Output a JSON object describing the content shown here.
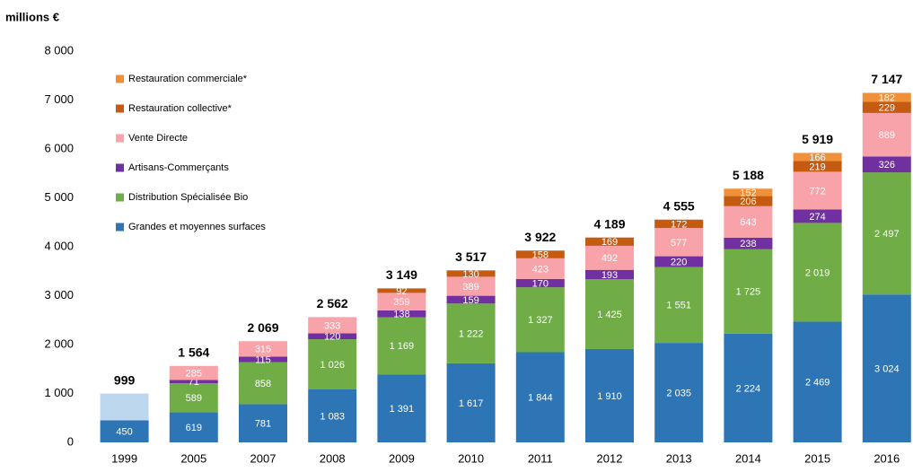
{
  "chart_data": {
    "type": "stacked_bar",
    "y_label": "millions €",
    "categories": [
      "1999",
      "2005",
      "2007",
      "2008",
      "2009",
      "2010",
      "2011",
      "2012",
      "2013",
      "2014",
      "2015",
      "2016"
    ],
    "ylim": [
      0,
      8000
    ],
    "yticks": [
      0,
      {
        "value": 1000,
        "label": "1 000"
      },
      {
        "value": 2000,
        "label": "2 000"
      },
      {
        "value": 3000,
        "label": "3 000"
      },
      {
        "value": 4000,
        "label": "4 000"
      },
      {
        "value": 5000,
        "label": "5 000"
      },
      {
        "value": 6000,
        "label": "6 000"
      },
      {
        "value": 7000,
        "label": "7 000"
      },
      {
        "value": 8000,
        "label": "8 000"
      }
    ],
    "grid": false,
    "series": [
      {
        "name": "Grandes et moyennes surfaces",
        "color": "#2e75b6",
        "values": [
          450,
          619,
          781,
          1083,
          1391,
          1617,
          1844,
          1910,
          2035,
          2224,
          2469,
          3024
        ],
        "value_labels": [
          "450",
          "619",
          "781",
          "1 083",
          "1 391",
          "1 617",
          "1 844",
          "1 910",
          "2 035",
          "2 224",
          "2 469",
          "3 024"
        ]
      },
      {
        "color": "#bdd7ee",
        "values": [
          549,
          null,
          null,
          null,
          null,
          null,
          null,
          null,
          null,
          null,
          null,
          null
        ]
      },
      {
        "name": "Distribution Spécialisée Bio",
        "color": "#70ad47",
        "values": [
          null,
          589,
          858,
          1026,
          1169,
          1222,
          1327,
          1425,
          1551,
          1725,
          2019,
          2497
        ],
        "value_labels": [
          null,
          "589",
          "858",
          "1 026",
          "1 169",
          "1 222",
          "1 327",
          "1 425",
          "1 551",
          "1 725",
          "2 019",
          "2 497"
        ]
      },
      {
        "name": "Artisans-Commerçants",
        "color": "#7030a0",
        "values": [
          null,
          71,
          115,
          120,
          138,
          159,
          170,
          193,
          220,
          238,
          274,
          326
        ]
      },
      {
        "name": "Vente Directe",
        "color": "#f8a3aa",
        "values": [
          null,
          285,
          315,
          333,
          359,
          389,
          423,
          492,
          577,
          643,
          772,
          889
        ]
      },
      {
        "name": "Restauration collective*",
        "color": "#c55a11",
        "values": [
          null,
          null,
          null,
          null,
          92,
          130,
          158,
          169,
          172,
          206,
          219,
          229
        ]
      },
      {
        "name": "Restauration commerciale*",
        "color": "#f0913a",
        "values": [
          null,
          null,
          null,
          null,
          null,
          null,
          null,
          null,
          null,
          152,
          166,
          182
        ]
      }
    ],
    "totals": {
      "values": [
        999,
        1564,
        2069,
        2562,
        3149,
        3517,
        3922,
        4189,
        4555,
        5188,
        5919,
        7147
      ],
      "value_labels": [
        "999",
        "1 564",
        "2 069",
        "2 562",
        "3 149",
        "3 517",
        "3 922",
        "4 189",
        "4 555",
        "5 188",
        "5 919",
        "7 147"
      ]
    }
  }
}
